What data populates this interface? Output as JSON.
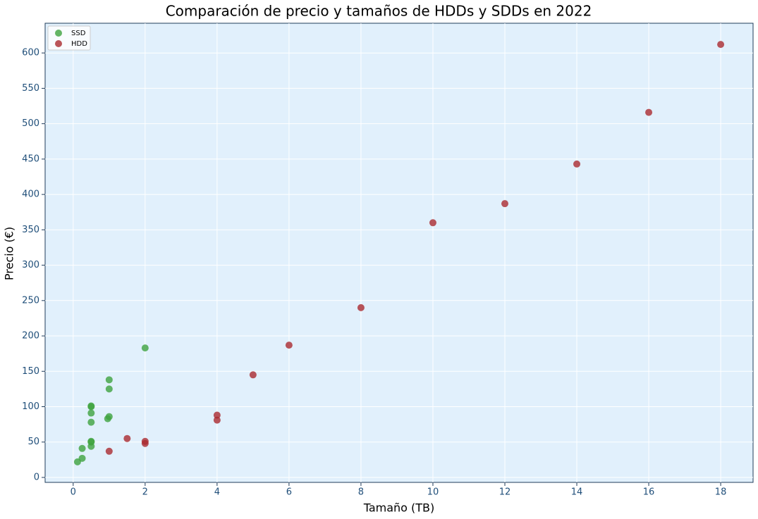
{
  "chart_data": {
    "type": "scatter",
    "title": "Comparación de precio y tamaños de HDDs y SDDs en 2022",
    "x_label": "Tamaño (TB)",
    "y_label": "Precio (€)",
    "xlim": [
      -0.78,
      18.9
    ],
    "ylim": [
      -7,
      642
    ],
    "xticks": [
      0,
      2,
      4,
      6,
      8,
      10,
      12,
      14,
      16,
      18
    ],
    "yticks": [
      0,
      50,
      100,
      150,
      200,
      250,
      300,
      350,
      400,
      450,
      500,
      550,
      600
    ],
    "grid": true,
    "legend": "upper left",
    "series": [
      {
        "name": "SSD",
        "color": "#3fa33f",
        "x": [
          0.12,
          0.25,
          0.25,
          0.5,
          0.5,
          0.5,
          0.5,
          0.5,
          0.5,
          0.5,
          0.96,
          1,
          1,
          1,
          2
        ],
        "values": [
          22,
          27,
          41,
          44,
          50,
          51,
          78,
          91,
          100,
          101,
          83,
          86,
          125,
          138,
          183
        ]
      },
      {
        "name": "HDD",
        "color": "#aa2a30",
        "x": [
          1,
          1.5,
          2,
          2,
          4,
          4,
          5,
          6,
          8,
          10,
          12,
          14,
          16,
          18
        ],
        "values": [
          37,
          55,
          48,
          51,
          81,
          88,
          145,
          187,
          240,
          360,
          387,
          443,
          516,
          612
        ]
      }
    ]
  }
}
